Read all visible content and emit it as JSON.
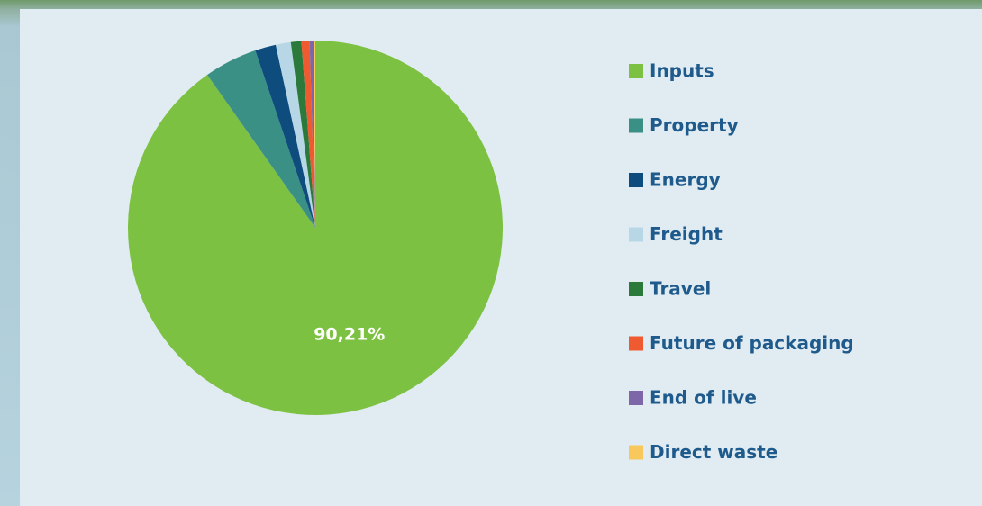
{
  "chart_data": {
    "type": "pie",
    "categories": [
      "Inputs",
      "Property",
      "Energy",
      "Freight",
      "Travel",
      "Future of packaging",
      "End of live",
      "Direct waste"
    ],
    "values": [
      90.21,
      4.6,
      1.8,
      1.3,
      0.9,
      0.7,
      0.35,
      0.14
    ],
    "value_labels": [
      "90,21%",
      null,
      null,
      null,
      null,
      null,
      null,
      null
    ],
    "colors": [
      "#7dc142",
      "#3a9084",
      "#0e4c7e",
      "#b7d7e6",
      "#2b7a3b",
      "#f05a30",
      "#7d67a8",
      "#f9c85c"
    ]
  }
}
